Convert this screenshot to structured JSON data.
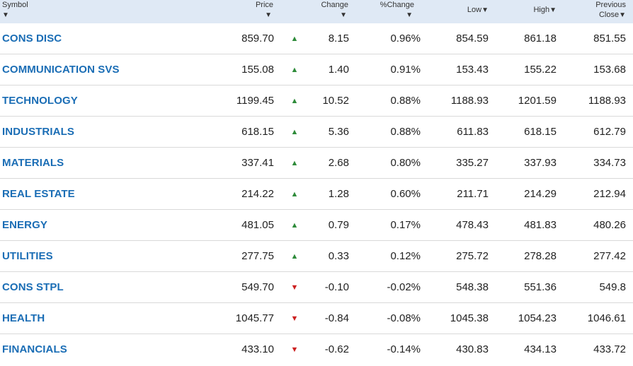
{
  "columns": {
    "symbol": "Symbol",
    "price": "Price",
    "change": "Change",
    "pct_change": "%Change",
    "low": "Low",
    "high": "High",
    "previous_close_line1": "Previous",
    "previous_close_line2": "Close"
  },
  "sort_arrow_glyph": "▼",
  "up_glyph": "▲",
  "down_glyph": "▼",
  "colors": {
    "up": "#2e8b3a",
    "down": "#cc1f1f",
    "link": "#1a6db5",
    "header_bg": "#dfe9f5"
  },
  "rows": [
    {
      "symbol": "CONS DISC",
      "price": "859.70",
      "direction": "up",
      "change": "8.15",
      "pct_change": "0.96%",
      "low": "854.59",
      "high": "861.18",
      "prev_close": "851.55"
    },
    {
      "symbol": "COMMUNICATION SVS",
      "price": "155.08",
      "direction": "up",
      "change": "1.40",
      "pct_change": "0.91%",
      "low": "153.43",
      "high": "155.22",
      "prev_close": "153.68"
    },
    {
      "symbol": "TECHNOLOGY",
      "price": "1199.45",
      "direction": "up",
      "change": "10.52",
      "pct_change": "0.88%",
      "low": "1188.93",
      "high": "1201.59",
      "prev_close": "1188.93"
    },
    {
      "symbol": "INDUSTRIALS",
      "price": "618.15",
      "direction": "up",
      "change": "5.36",
      "pct_change": "0.88%",
      "low": "611.83",
      "high": "618.15",
      "prev_close": "612.79"
    },
    {
      "symbol": "MATERIALS",
      "price": "337.41",
      "direction": "up",
      "change": "2.68",
      "pct_change": "0.80%",
      "low": "335.27",
      "high": "337.93",
      "prev_close": "334.73"
    },
    {
      "symbol": "REAL ESTATE",
      "price": "214.22",
      "direction": "up",
      "change": "1.28",
      "pct_change": "0.60%",
      "low": "211.71",
      "high": "214.29",
      "prev_close": "212.94"
    },
    {
      "symbol": "ENERGY",
      "price": "481.05",
      "direction": "up",
      "change": "0.79",
      "pct_change": "0.17%",
      "low": "478.43",
      "high": "481.83",
      "prev_close": "480.26"
    },
    {
      "symbol": "UTILITIES",
      "price": "277.75",
      "direction": "up",
      "change": "0.33",
      "pct_change": "0.12%",
      "low": "275.72",
      "high": "278.28",
      "prev_close": "277.42"
    },
    {
      "symbol": "CONS STPL",
      "price": "549.70",
      "direction": "down",
      "change": "-0.10",
      "pct_change": "-0.02%",
      "low": "548.38",
      "high": "551.36",
      "prev_close": "549.8"
    },
    {
      "symbol": "HEALTH",
      "price": "1045.77",
      "direction": "down",
      "change": "-0.84",
      "pct_change": "-0.08%",
      "low": "1045.38",
      "high": "1054.23",
      "prev_close": "1046.61"
    },
    {
      "symbol": "FINANCIALS",
      "price": "433.10",
      "direction": "down",
      "change": "-0.62",
      "pct_change": "-0.14%",
      "low": "430.83",
      "high": "434.13",
      "prev_close": "433.72"
    }
  ]
}
